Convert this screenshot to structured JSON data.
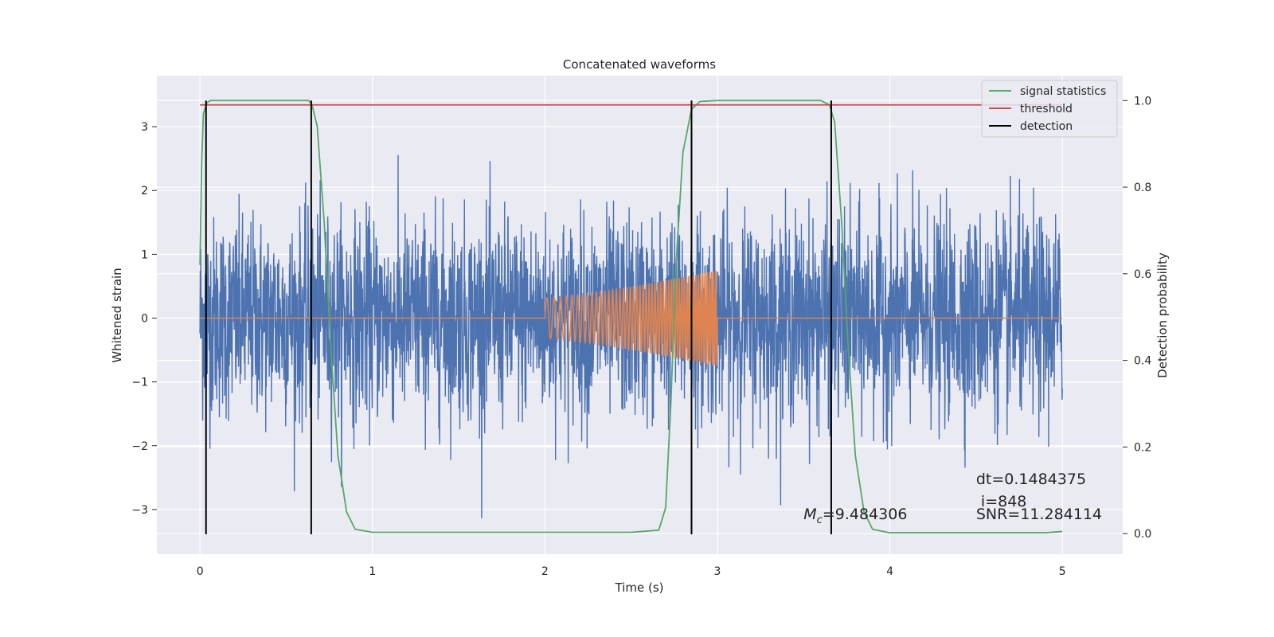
{
  "chart_data": {
    "type": "line",
    "title": "Concatenated waveforms",
    "xlabel": "Time (s)",
    "ylabel": "Whitened strain",
    "y2label": "Detection probability",
    "xlim": [
      -0.25,
      5.35
    ],
    "ylim": [
      -3.7,
      3.8
    ],
    "y2lim": [
      -0.0475,
      1.0575
    ],
    "xticks": [
      0,
      1,
      2,
      3,
      4,
      5
    ],
    "yticks": [
      -3,
      -2,
      -1,
      0,
      1,
      2,
      3
    ],
    "y2ticks": [
      0.0,
      0.2,
      0.4,
      0.6,
      0.8,
      1.0
    ],
    "xtick_labels": [
      "0",
      "1",
      "2",
      "3",
      "4",
      "5"
    ],
    "ytick_labels": [
      "−3",
      "−2",
      "−1",
      "0",
      "1",
      "2",
      "3"
    ],
    "y2tick_labels": [
      "0.0",
      "0.2",
      "0.4",
      "0.6",
      "0.8",
      "1.0"
    ],
    "grid": true,
    "legend_position": "top-right",
    "legend": [
      "signal statistics",
      "threshold",
      "detection"
    ],
    "colors": {
      "background": "#eaeaf2",
      "grid": "#ffffff",
      "noise": "#4c72b0",
      "template": "#dd8452",
      "statistic": "#55a868",
      "threshold": "#c44e52",
      "detection": "#000000"
    },
    "series": [
      {
        "name": "signal statistics",
        "axis": "right",
        "x": [
          0.0,
          0.01,
          0.02,
          0.04,
          0.06,
          0.1,
          0.3,
          0.5,
          0.6,
          0.63,
          0.65,
          0.68,
          0.72,
          0.76,
          0.8,
          0.85,
          0.9,
          1.0,
          1.5,
          2.0,
          2.5,
          2.66,
          2.7,
          2.73,
          2.76,
          2.8,
          2.85,
          2.9,
          3.0,
          3.5,
          3.6,
          3.65,
          3.68,
          3.72,
          3.76,
          3.8,
          3.85,
          3.9,
          4.0,
          4.5,
          4.9,
          5.0
        ],
        "y": [
          0.62,
          0.86,
          0.97,
          0.995,
          1.0,
          1.0,
          1.0,
          1.0,
          1.0,
          1.0,
          0.99,
          0.94,
          0.72,
          0.42,
          0.18,
          0.05,
          0.01,
          0.003,
          0.003,
          0.003,
          0.003,
          0.008,
          0.06,
          0.3,
          0.62,
          0.88,
          0.98,
          0.998,
          1.0,
          1.0,
          1.0,
          0.99,
          0.95,
          0.72,
          0.42,
          0.18,
          0.05,
          0.01,
          0.002,
          0.002,
          0.002,
          0.005
        ]
      },
      {
        "name": "threshold",
        "axis": "right",
        "x": [
          0.0,
          5.0
        ],
        "y": [
          0.99,
          0.99
        ]
      },
      {
        "name": "detection",
        "axis": "right",
        "type": "vlines",
        "x": [
          0.035,
          0.645,
          2.85,
          3.66
        ],
        "ymin": -0.0015,
        "ymax": 1.0
      },
      {
        "name": "",
        "axis": "left",
        "type": "noise",
        "x_range": [
          0,
          5
        ],
        "amplitude_envelope": [
          0.62,
          2.9
        ]
      },
      {
        "name": "",
        "axis": "left",
        "type": "chirp",
        "x_range": [
          2.0,
          3.0
        ],
        "amplitude_range": [
          0.32,
          0.75
        ],
        "zero_line_x": [
          0.0,
          5.0
        ]
      }
    ],
    "annotations": [
      {
        "text": "dt=0.1484375",
        "x": 4.5,
        "y": -2.6
      },
      {
        "text": " i=848",
        "x": 4.5,
        "y": -2.95
      },
      {
        "text": "SNR=11.284114",
        "x": 4.5,
        "y": -3.15
      },
      {
        "text": "M",
        "sub": "c",
        "after": "=9.484306",
        "x": 3.5,
        "y": -3.15
      }
    ]
  }
}
